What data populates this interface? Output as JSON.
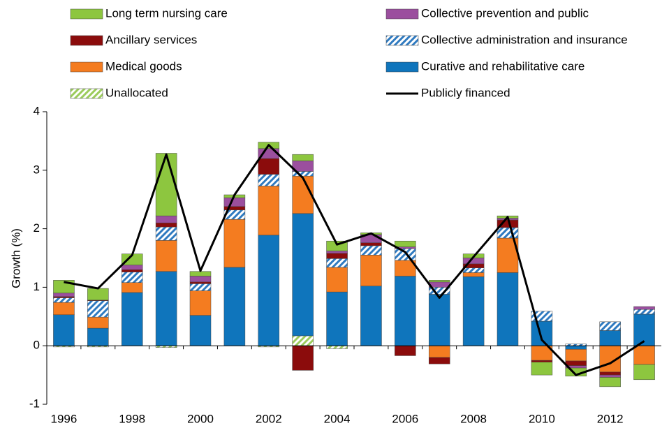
{
  "chart_data": {
    "type": "bar",
    "stacked": true,
    "y_label": "Growth (%)",
    "categories": [
      "1996",
      null,
      "1998",
      null,
      "2000",
      null,
      "2002",
      null,
      "2004",
      null,
      "2006",
      null,
      "2008",
      null,
      "2010",
      null,
      "2012",
      null
    ],
    "ylim": [
      -1,
      4
    ],
    "yticks": [
      -1,
      0,
      1,
      2,
      3,
      4
    ],
    "grid": false,
    "series": [
      {
        "name": "Unallocated",
        "type": "bar",
        "color": "#9ccc5c",
        "hatch": true,
        "values": [
          -0.02,
          -0.02,
          0,
          -0.03,
          0,
          0,
          -0.02,
          0.17,
          -0.05,
          0,
          0,
          0,
          0,
          0,
          0,
          0,
          0,
          0
        ]
      },
      {
        "name": "Curative and rehabilitative care",
        "type": "bar",
        "color": "#0f75bc",
        "values": [
          0.53,
          0.3,
          0.91,
          1.27,
          0.52,
          1.34,
          1.89,
          2.09,
          0.92,
          1.02,
          1.19,
          0.88,
          1.18,
          1.25,
          0.42,
          -0.06,
          0.26,
          0.54
        ]
      },
      {
        "name": "Medical goods",
        "type": "bar",
        "color": "#f47c20",
        "values": [
          0.21,
          0.19,
          0.17,
          0.53,
          0.42,
          0.82,
          0.84,
          0.64,
          0.42,
          0.53,
          0.27,
          -0.2,
          0.07,
          0.59,
          -0.25,
          -0.2,
          -0.45,
          -0.32
        ]
      },
      {
        "name": "Collective administration and insurance",
        "type": "bar",
        "color": "#2f7ac0",
        "hatch": true,
        "values": [
          0.08,
          0.28,
          0.18,
          0.23,
          0.12,
          0.16,
          0.2,
          0.08,
          0.15,
          0.16,
          0.2,
          0.12,
          0.08,
          0.18,
          0.17,
          0.03,
          0.15,
          0.08
        ]
      },
      {
        "name": "Ancillary services",
        "type": "bar",
        "color": "#8b0c0c",
        "values": [
          0.02,
          0.01,
          0.04,
          0.07,
          0.03,
          0.06,
          0.27,
          -0.42,
          0.09,
          0.05,
          -0.17,
          -0.11,
          0.07,
          0.13,
          -0.03,
          -0.08,
          -0.05,
          0
        ]
      },
      {
        "name": "Collective prevention and public",
        "type": "bar",
        "color": "#9b4f9e",
        "values": [
          0.06,
          0,
          0.08,
          0.12,
          0.1,
          0.15,
          0.17,
          0.18,
          0.04,
          0.14,
          0.03,
          0.09,
          0.1,
          0.03,
          0,
          -0.04,
          -0.04,
          0.05
        ]
      },
      {
        "name": "Long term nursing care",
        "type": "bar",
        "color": "#8dc63f",
        "values": [
          0.22,
          0.2,
          0.19,
          1.07,
          0.08,
          0.05,
          0.11,
          0.11,
          0.17,
          0.03,
          0.1,
          0.03,
          0.07,
          0.04,
          -0.22,
          -0.14,
          -0.16,
          -0.26
        ]
      },
      {
        "name": "Publicly financed",
        "type": "line",
        "color": "#000000",
        "values": [
          1.09,
          0.98,
          1.55,
          3.27,
          1.28,
          2.58,
          3.43,
          2.87,
          1.73,
          1.92,
          1.6,
          0.82,
          1.52,
          2.2,
          0.1,
          -0.5,
          -0.3,
          0.08
        ]
      }
    ]
  }
}
